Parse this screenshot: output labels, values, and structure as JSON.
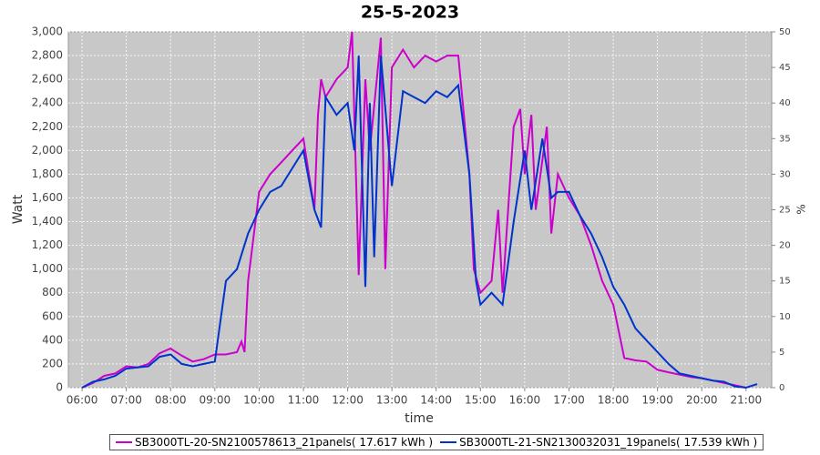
{
  "chart_data": {
    "type": "line",
    "title": "25-5-2023",
    "x_label": "time",
    "y_label": "Watt",
    "y2_label": "%",
    "xlim": [
      5.69,
      21.58
    ],
    "xticks": [
      {
        "value": 6,
        "label": "06:00"
      },
      {
        "value": 7,
        "label": "07:00"
      },
      {
        "value": 8,
        "label": "08:00"
      },
      {
        "value": 9,
        "label": "09:00"
      },
      {
        "value": 10,
        "label": "10:00"
      },
      {
        "value": 11,
        "label": "11:00"
      },
      {
        "value": 12,
        "label": "12:00"
      },
      {
        "value": 13,
        "label": "13:00"
      },
      {
        "value": 14,
        "label": "14:00"
      },
      {
        "value": 15,
        "label": "15:00"
      },
      {
        "value": 16,
        "label": "16:00"
      },
      {
        "value": 17,
        "label": "17:00"
      },
      {
        "value": 18,
        "label": "18:00"
      },
      {
        "value": 19,
        "label": "19:00"
      },
      {
        "value": 20,
        "label": "20:00"
      },
      {
        "value": 21,
        "label": "21:00"
      }
    ],
    "ylim": [
      0,
      3000
    ],
    "yticks": [
      0,
      200,
      400,
      600,
      800,
      {
        "value": 1000,
        "label": "1,000"
      },
      {
        "value": 1200,
        "label": "1,200"
      },
      {
        "value": 1400,
        "label": "1,400"
      },
      {
        "value": 1600,
        "label": "1,600"
      },
      {
        "value": 1800,
        "label": "1,800"
      },
      {
        "value": 2000,
        "label": "2,000"
      },
      {
        "value": 2200,
        "label": "2,200"
      },
      {
        "value": 2400,
        "label": "2,400"
      },
      {
        "value": 2600,
        "label": "2,600"
      },
      {
        "value": 2800,
        "label": "2,800"
      },
      {
        "value": 3000,
        "label": "3,000"
      }
    ],
    "y2lim": [
      0,
      50
    ],
    "y2ticks": [
      0,
      5,
      10,
      15,
      20,
      25,
      30,
      35,
      40,
      45,
      50
    ],
    "grid": true,
    "series": [
      {
        "name": "SB3000TL-20-SN2100578613_21panels( 17.617 kWh )",
        "color": "#cc00cc",
        "x": [
          6.0,
          6.25,
          6.5,
          6.75,
          7.0,
          7.25,
          7.5,
          7.75,
          8.0,
          8.25,
          8.5,
          8.75,
          9.0,
          9.25,
          9.5,
          9.6,
          9.67,
          9.75,
          10.0,
          10.25,
          10.5,
          10.75,
          11.0,
          11.25,
          11.33,
          11.4,
          11.5,
          11.75,
          12.0,
          12.1,
          12.25,
          12.4,
          12.5,
          12.75,
          12.85,
          13.0,
          13.25,
          13.5,
          13.75,
          14.0,
          14.25,
          14.5,
          14.75,
          14.85,
          15.0,
          15.25,
          15.4,
          15.5,
          15.75,
          15.9,
          16.0,
          16.15,
          16.25,
          16.5,
          16.6,
          16.75,
          17.0,
          17.25,
          17.5,
          17.75,
          18.0,
          18.25,
          18.5,
          18.75,
          19.0,
          19.25,
          19.5,
          19.75,
          20.0,
          20.25,
          20.5,
          20.75,
          21.0
        ],
        "values": [
          0,
          40,
          100,
          120,
          180,
          170,
          200,
          290,
          330,
          270,
          220,
          240,
          280,
          280,
          300,
          390,
          300,
          900,
          1650,
          1800,
          1900,
          2000,
          2100,
          1500,
          2300,
          2600,
          2450,
          2600,
          2700,
          3000,
          950,
          2600,
          2000,
          2950,
          1000,
          2700,
          2850,
          2700,
          2800,
          2750,
          2800,
          2800,
          1800,
          1000,
          800,
          900,
          1500,
          800,
          2200,
          2350,
          1800,
          2300,
          1500,
          2200,
          1300,
          1800,
          1600,
          1450,
          1200,
          900,
          700,
          250,
          230,
          220,
          150,
          130,
          110,
          90,
          80,
          60,
          40,
          20,
          0
        ]
      },
      {
        "name": "SB3000TL-21-SN2130032031_19panels( 17.539 kWh )",
        "color": "#0033cc",
        "x": [
          6.0,
          6.25,
          6.5,
          6.75,
          7.0,
          7.25,
          7.5,
          7.75,
          8.0,
          8.25,
          8.5,
          8.75,
          9.0,
          9.25,
          9.5,
          9.75,
          10.0,
          10.25,
          10.5,
          10.75,
          11.0,
          11.25,
          11.4,
          11.5,
          11.75,
          12.0,
          12.15,
          12.25,
          12.4,
          12.5,
          12.6,
          12.75,
          13.0,
          13.25,
          13.5,
          13.75,
          14.0,
          14.25,
          14.5,
          14.75,
          14.9,
          15.0,
          15.25,
          15.5,
          15.75,
          16.0,
          16.15,
          16.4,
          16.6,
          16.75,
          17.0,
          17.25,
          17.5,
          17.75,
          18.0,
          18.25,
          18.5,
          18.75,
          19.0,
          19.25,
          19.5,
          19.75,
          20.0,
          20.25,
          20.5,
          20.75,
          21.0,
          21.25
        ],
        "values": [
          0,
          50,
          70,
          100,
          160,
          170,
          180,
          260,
          280,
          200,
          180,
          200,
          220,
          900,
          1000,
          1300,
          1500,
          1650,
          1700,
          1850,
          2000,
          1500,
          1350,
          2450,
          2300,
          2400,
          2000,
          2800,
          850,
          2400,
          1100,
          2800,
          1700,
          2500,
          2450,
          2400,
          2500,
          2450,
          2550,
          1800,
          900,
          700,
          800,
          700,
          1400,
          2000,
          1500,
          2100,
          1600,
          1650,
          1650,
          1450,
          1300,
          1100,
          850,
          700,
          500,
          400,
          300,
          200,
          120,
          100,
          80,
          60,
          50,
          10,
          0,
          30
        ]
      }
    ]
  }
}
